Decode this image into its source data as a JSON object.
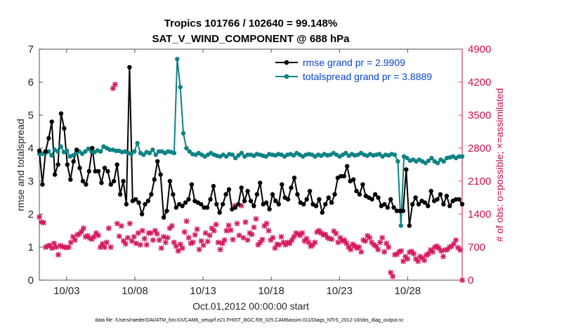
{
  "chart_data": {
    "type": "line",
    "title_line1": "Tropics 101766 / 102640 = 99.148%",
    "title_line2": "SAT_V_WIND_COMPONENT @ 688 hPa",
    "xlabel": "Oct.01,2012 00:00:00 start",
    "ylabel_left": "rmse and totalspread",
    "ylabel_right": "# of obs: o=possible; ×=assimilated",
    "footer": "data file: /Users/raeder/DAI/ATM_forcXX/CAM6_setup/f.e21.FHIST_BGC.f09_025.CAM6assim.011/Diags_NTrS_2012-10/obs_diag_output.nc",
    "xlim": [
      1,
      32
    ],
    "ylim_left": [
      0,
      7
    ],
    "ylim_right": [
      0,
      4900
    ],
    "x_ticks": [
      3,
      8,
      13,
      18,
      23,
      28
    ],
    "x_tick_labels": [
      "10/03",
      "10/08",
      "10/13",
      "10/18",
      "10/23",
      "10/28"
    ],
    "y_ticks_left": [
      "0",
      "1",
      "2",
      "3",
      "4",
      "5",
      "6",
      "7"
    ],
    "y_ticks_right": [
      "0",
      "700",
      "1400",
      "2100",
      "2800",
      "3500",
      "4200",
      "4900"
    ],
    "series": [
      {
        "name": "rmse grand pr = 2.9909",
        "color": "#000000",
        "values": [
          3.92,
          2.9,
          3.9,
          4.3,
          4.8,
          3.2,
          3.5,
          5.05,
          4.6,
          3.5,
          3.05,
          3.6,
          3.95,
          3.4,
          3.0,
          2.9,
          3.3,
          4.0,
          3.3,
          3.3,
          2.95,
          3.4,
          3.3,
          2.9,
          3.0,
          3.5,
          2.6,
          3.0,
          2.3,
          6.45,
          2.4,
          2.45,
          2.35,
          2.0,
          2.3,
          2.4,
          2.6,
          3.05,
          3.6,
          3.2,
          1.9,
          2.1,
          3.0,
          2.6,
          2.2,
          2.3,
          2.25,
          2.35,
          2.45,
          2.9,
          2.4,
          2.35,
          2.3,
          2.2,
          2.2,
          2.45,
          2.85,
          2.3,
          2.05,
          2.3,
          2.6,
          2.75,
          2.15,
          2.2,
          2.3,
          2.8,
          2.4,
          2.7,
          2.4,
          2.25,
          2.6,
          2.95,
          2.3,
          2.35,
          2.15,
          2.6,
          2.4,
          2.3,
          2.9,
          2.5,
          2.45,
          2.8,
          3.1,
          2.6,
          2.35,
          2.3,
          2.45,
          2.7,
          2.3,
          2.25,
          2.45,
          2.05,
          2.3,
          2.5,
          2.35,
          2.6,
          3.1,
          3.15,
          3.15,
          3.45,
          3.0,
          3.05,
          2.7,
          2.6,
          2.9,
          2.55,
          2.5,
          2.45,
          2.6,
          2.5,
          2.25,
          2.3,
          2.2,
          2.45,
          2.2,
          2.1,
          2.1,
          2.1,
          3.35,
          1.65,
          2.3,
          2.5,
          2.3,
          2.4,
          2.35,
          2.25,
          2.7,
          2.4,
          2.45,
          2.6,
          2.3,
          2.55,
          2.25,
          2.4,
          2.45,
          2.45,
          2.3
        ]
      },
      {
        "name": "totalspread grand pr = 3.8889",
        "color": "#0e8383",
        "values": [
          3.83,
          3.83,
          3.85,
          3.9,
          3.78,
          3.95,
          3.9,
          4.05,
          3.88,
          3.92,
          3.75,
          3.78,
          3.85,
          3.9,
          3.83,
          3.9,
          3.98,
          3.9,
          3.88,
          3.93,
          3.9,
          4.05,
          4.0,
          3.95,
          3.95,
          3.92,
          3.92,
          3.88,
          3.9,
          3.85,
          3.82,
          3.9,
          4.15,
          3.85,
          3.8,
          3.88,
          3.85,
          3.95,
          3.8,
          3.9,
          3.9,
          3.85,
          3.9,
          3.88,
          3.85,
          6.7,
          5.85,
          4.45,
          4.0,
          3.9,
          3.82,
          3.8,
          3.85,
          3.8,
          3.75,
          3.8,
          3.85,
          3.8,
          3.77,
          3.75,
          3.8,
          3.75,
          3.82,
          3.8,
          3.7,
          3.78,
          3.85,
          3.75,
          3.8,
          3.8,
          3.77,
          3.82,
          3.8,
          3.77,
          3.75,
          3.82,
          3.8,
          3.78,
          3.82,
          3.8,
          3.75,
          3.8,
          3.82,
          3.78,
          3.85,
          3.8,
          3.75,
          3.8,
          3.82,
          3.8,
          3.75,
          3.8,
          3.77,
          3.82,
          3.78,
          3.8,
          3.85,
          3.8,
          3.75,
          3.8,
          3.85,
          3.77,
          3.82,
          3.78,
          3.8,
          3.85,
          3.8,
          3.77,
          3.82,
          3.78,
          3.8,
          3.82,
          3.75,
          3.8,
          3.78,
          3.82,
          3.8,
          3.6,
          1.65,
          3.75,
          3.7,
          3.62,
          3.65,
          3.6,
          3.65,
          3.6,
          3.55,
          3.62,
          3.7,
          3.6,
          3.55,
          3.65,
          3.6,
          3.7,
          3.72,
          3.75,
          3.7,
          3.75,
          3.75
        ]
      },
      {
        "name": "assimilated",
        "color": "#d41a60",
        "values": [
          1340,
          1230,
          1220,
          700,
          720,
          740,
          680,
          780,
          700,
          540,
          730,
          710,
          700,
          690,
          700,
          800,
          920,
          850,
          960,
          980,
          1030,
          1100,
          920,
          940,
          890,
          870,
          920,
          1000,
          950,
          700,
          770,
          700,
          800,
          1100,
          700,
          4070,
          4150,
          1200,
          930,
          1150,
          830,
          770,
          900,
          1200,
          830,
          920,
          780,
          1000,
          750,
          1050,
          880,
          750,
          1000,
          1000,
          850,
          1050,
          980,
          850,
          680,
          920,
          800,
          900,
          1100,
          1150,
          800,
          720,
          620,
          760,
          680,
          1020,
          1250,
          900,
          780,
          800,
          960,
          1080,
          650,
          830,
          740,
          1000,
          820,
          950,
          1100,
          1050,
          1180,
          800,
          650,
          780,
          850,
          1050,
          1160,
          1060,
          860,
          1580,
          1200,
          950,
          1580,
          900,
          1230,
          850,
          1000,
          970,
          1120,
          1300,
          750,
          800,
          860,
          1150,
          1200,
          1050,
          850,
          900,
          680,
          760,
          750,
          920,
          800,
          750,
          800,
          780,
          850,
          920,
          1000,
          980,
          950,
          1000,
          830,
          880,
          800,
          720,
          750,
          800,
          1020,
          1050,
          1000,
          960,
          970,
          900,
          880,
          870,
          1040,
          990,
          800,
          900,
          830,
          850,
          780,
          700,
          650,
          760,
          720,
          680,
          700,
          600,
          850,
          830,
          940,
          900,
          800,
          750,
          720,
          650,
          800,
          900,
          600,
          780,
          700,
          160,
          80,
          540,
          550,
          600,
          620,
          400,
          500,
          450,
          590,
          610,
          560,
          450,
          400,
          500,
          470,
          420,
          530,
          560,
          640,
          600,
          700,
          720,
          680,
          620,
          500,
          640,
          650,
          700,
          720,
          770,
          850,
          690,
          640,
          0
        ]
      }
    ]
  }
}
